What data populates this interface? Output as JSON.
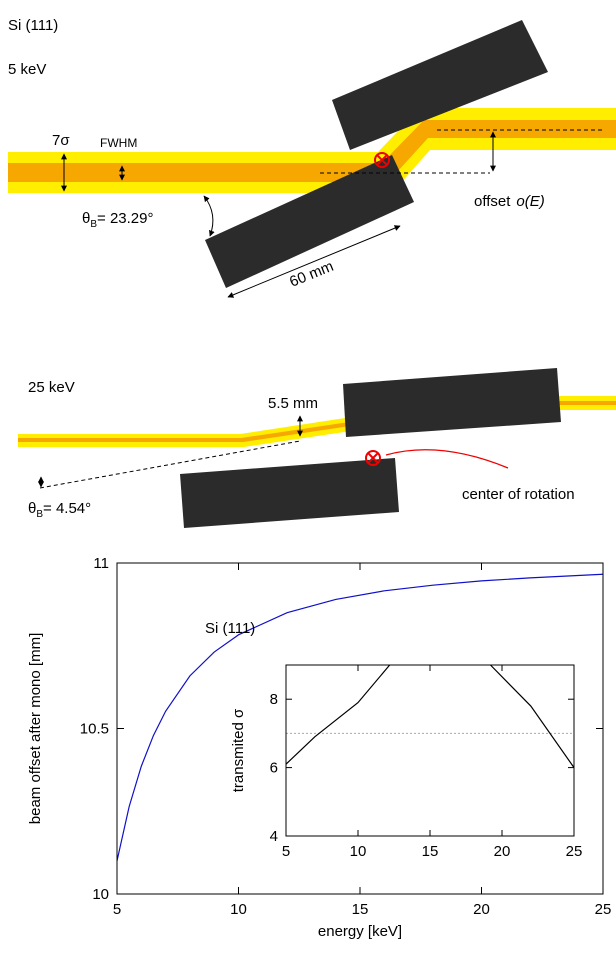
{
  "diagram": {
    "material": "Si (111)",
    "top": {
      "energy": "5 keV",
      "beam_width": "7σ",
      "fwhm": "FWHM",
      "theta": {
        "symbol": "θ",
        "subscript": "B",
        "value": "= 23.29°"
      },
      "length": "60 mm",
      "offset": {
        "label": "offset",
        "symbol": "o(E)"
      }
    },
    "bottom": {
      "energy": "25 keV",
      "gap": "5.5 mm",
      "theta": {
        "symbol": "θ",
        "subscript": "B",
        "value": "= 4.54°"
      },
      "rotation_center": "center of rotation"
    }
  },
  "chart_data": [
    {
      "type": "line",
      "xlabel": "energy [keV]",
      "ylabel": "beam offset after mono [mm]",
      "x": [
        5,
        5.5,
        6,
        6.5,
        7,
        8,
        9,
        10,
        12,
        14,
        16,
        18,
        20,
        22,
        25
      ],
      "series": [
        {
          "name": "Si (111)",
          "color": "#1010c8",
          "values": [
            10.1,
            10.264,
            10.386,
            10.479,
            10.552,
            10.659,
            10.731,
            10.783,
            10.85,
            10.89,
            10.916,
            10.933,
            10.946,
            10.955,
            10.966
          ]
        }
      ],
      "xlim": [
        5,
        25
      ],
      "ylim": [
        10,
        11
      ],
      "xticks": [
        5,
        10,
        15,
        20,
        25
      ],
      "yticks": [
        10,
        10.5,
        11
      ]
    },
    {
      "type": "line",
      "ylabel": "transmited σ",
      "x": [
        5,
        7,
        10,
        12.2,
        15.7,
        19.2,
        22,
        25
      ],
      "series": [
        {
          "color": "#000000",
          "values": [
            6.1,
            6.9,
            7.9,
            9,
            null,
            9,
            7.8,
            6.0
          ]
        }
      ],
      "reference_line": 7,
      "reference_color": "#aaaaaa",
      "xlim": [
        5,
        25
      ],
      "ylim": [
        4,
        9
      ],
      "xticks": [
        5,
        10,
        15,
        20,
        25
      ],
      "yticks": [
        4,
        6,
        8
      ]
    }
  ]
}
